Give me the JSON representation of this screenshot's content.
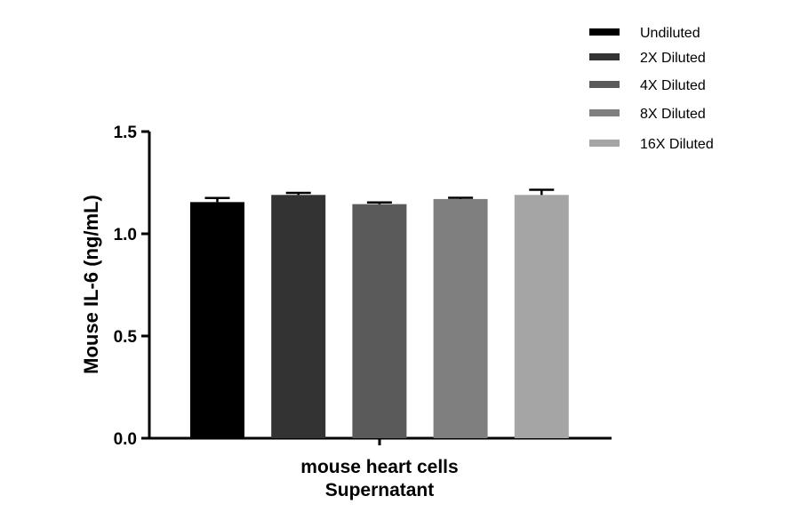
{
  "chart_data": {
    "type": "bar",
    "title": "",
    "ylabel": "Mouse IL-6 (ng/mL)",
    "xlabel_lines": [
      "mouse heart cells",
      "Supernatant"
    ],
    "ylim": [
      0,
      1.5
    ],
    "yticks": [
      "0.0",
      "0.5",
      "1.0",
      "1.5"
    ],
    "legend_position": "top-right",
    "grid": false,
    "series": [
      {
        "name": "Undiluted",
        "value": 1.155,
        "error": 0.02,
        "color": "#000000"
      },
      {
        "name": "2X Diluted",
        "value": 1.19,
        "error": 0.01,
        "color": "#333333"
      },
      {
        "name": "4X Diluted",
        "value": 1.145,
        "error": 0.008,
        "color": "#5a5a5a"
      },
      {
        "name": "8X Diluted",
        "value": 1.17,
        "error": 0.006,
        "color": "#7f7f7f"
      },
      {
        "name": "16X Diluted",
        "value": 1.19,
        "error": 0.025,
        "color": "#a5a5a5"
      }
    ]
  }
}
